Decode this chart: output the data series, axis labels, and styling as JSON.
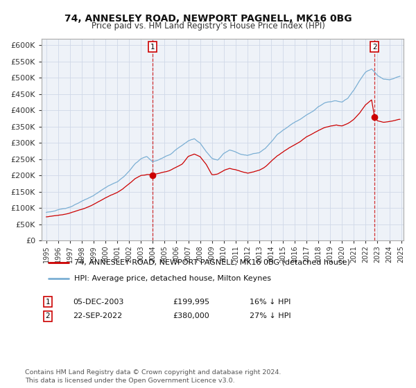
{
  "title": "74, ANNESLEY ROAD, NEWPORT PAGNELL, MK16 0BG",
  "subtitle": "Price paid vs. HM Land Registry's House Price Index (HPI)",
  "ylabel_ticks": [
    "£0",
    "£50K",
    "£100K",
    "£150K",
    "£200K",
    "£250K",
    "£300K",
    "£350K",
    "£400K",
    "£450K",
    "£500K",
    "£550K",
    "£600K"
  ],
  "ytick_values": [
    0,
    50000,
    100000,
    150000,
    200000,
    250000,
    300000,
    350000,
    400000,
    450000,
    500000,
    550000,
    600000
  ],
  "ylim": [
    0,
    620000
  ],
  "legend_line1": "74, ANNESLEY ROAD, NEWPORT PAGNELL, MK16 0BG (detached house)",
  "legend_line2": "HPI: Average price, detached house, Milton Keynes",
  "annotation1_label": "1",
  "annotation1_text": "05-DEC-2003",
  "annotation1_price": "£199,995",
  "annotation1_hpi": "16% ↓ HPI",
  "annotation2_label": "2",
  "annotation2_text": "22-SEP-2022",
  "annotation2_price": "£380,000",
  "annotation2_hpi": "27% ↓ HPI",
  "footer": "Contains HM Land Registry data © Crown copyright and database right 2024.\nThis data is licensed under the Open Government Licence v3.0.",
  "hpi_color": "#7bafd4",
  "sale_color": "#cc0000",
  "background_color": "#ffffff",
  "grid_color": "#d0d8e8",
  "sale1_year": 2004.0,
  "sale1_price": 199995,
  "sale2_year": 2022.75,
  "sale2_price": 380000,
  "xlim_left": 1994.6,
  "xlim_right": 2025.2
}
